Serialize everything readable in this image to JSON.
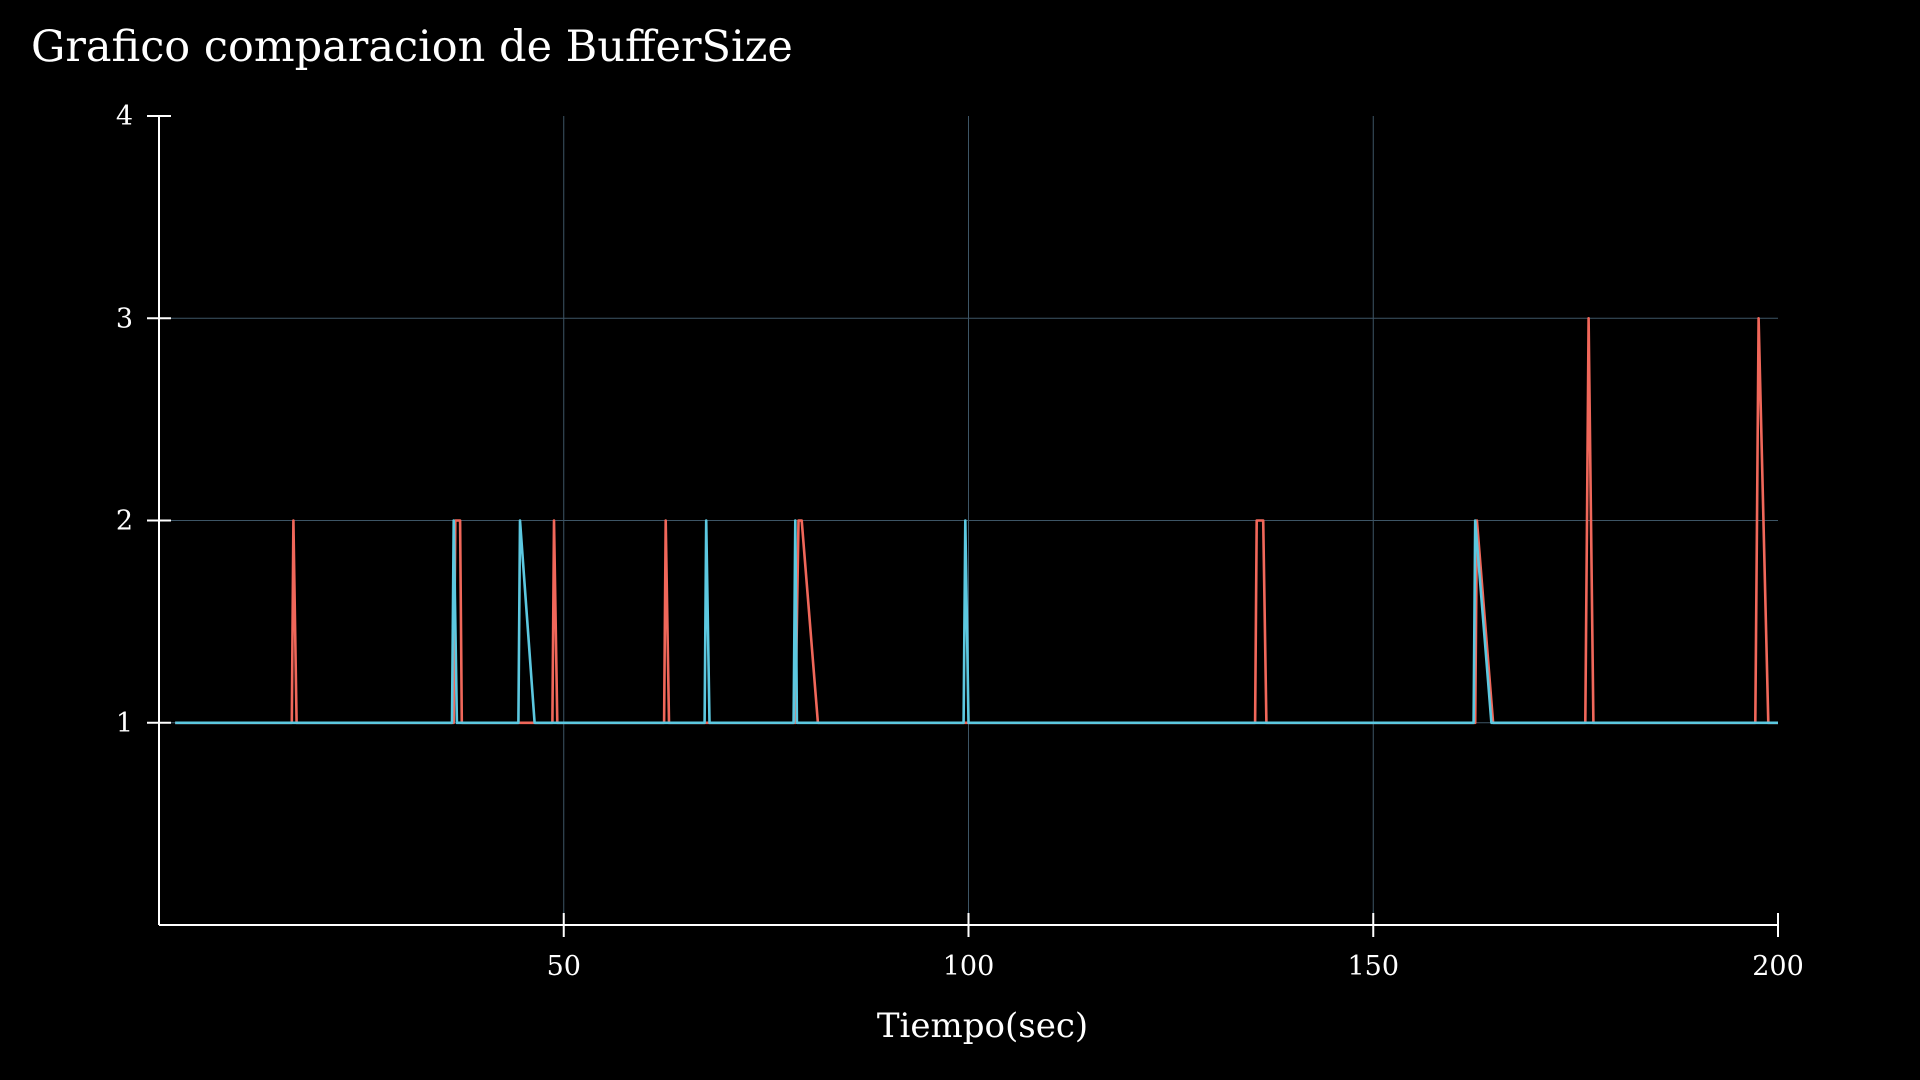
{
  "chart_data": {
    "type": "line",
    "title": "Grafico comparacion de BufferSize",
    "xlabel": "Tiempo(sec)",
    "ylabel": "",
    "xlim": [
      0,
      200
    ],
    "ylim": [
      0,
      4
    ],
    "xticks": [
      50,
      100,
      150,
      200
    ],
    "yticks": [
      1,
      2,
      3,
      4
    ],
    "grid": true,
    "legend": "none",
    "background_color": "#000000",
    "axis_color": "#ffffff",
    "grid_color": "#3d5566",
    "series": [
      {
        "color": "#f0675a",
        "points": [
          [
            2,
            1
          ],
          [
            16.4,
            1
          ],
          [
            16.6,
            2
          ],
          [
            17.0,
            1
          ],
          [
            36.4,
            1
          ],
          [
            36.6,
            2
          ],
          [
            37.2,
            2
          ],
          [
            37.4,
            1
          ],
          [
            48.6,
            1
          ],
          [
            48.8,
            2
          ],
          [
            49.2,
            1
          ],
          [
            62.4,
            1
          ],
          [
            62.6,
            2
          ],
          [
            63.0,
            1
          ],
          [
            78.6,
            1
          ],
          [
            79.0,
            2
          ],
          [
            79.4,
            2
          ],
          [
            81.4,
            1
          ],
          [
            135.4,
            1
          ],
          [
            135.6,
            2
          ],
          [
            136.4,
            2
          ],
          [
            136.8,
            1
          ],
          [
            162.6,
            1
          ],
          [
            162.8,
            2
          ],
          [
            164.8,
            1
          ],
          [
            176.2,
            1
          ],
          [
            176.4,
            2
          ],
          [
            176.6,
            3
          ],
          [
            177.2,
            1
          ],
          [
            197.2,
            1
          ],
          [
            197.4,
            2
          ],
          [
            197.6,
            3
          ],
          [
            198.8,
            1
          ],
          [
            200,
            1
          ]
        ]
      },
      {
        "color": "#5cc8e0",
        "points": [
          [
            2,
            1
          ],
          [
            36.2,
            1
          ],
          [
            36.4,
            2
          ],
          [
            36.8,
            1
          ],
          [
            44.4,
            1
          ],
          [
            44.6,
            2
          ],
          [
            46.4,
            1
          ],
          [
            67.4,
            1
          ],
          [
            67.6,
            2
          ],
          [
            68.0,
            1
          ],
          [
            78.4,
            1
          ],
          [
            78.6,
            2
          ],
          [
            78.8,
            1
          ],
          [
            99.4,
            1
          ],
          [
            99.6,
            2
          ],
          [
            100.0,
            1
          ],
          [
            162.4,
            1
          ],
          [
            162.6,
            2
          ],
          [
            164.6,
            1
          ],
          [
            200,
            1
          ]
        ]
      }
    ]
  }
}
